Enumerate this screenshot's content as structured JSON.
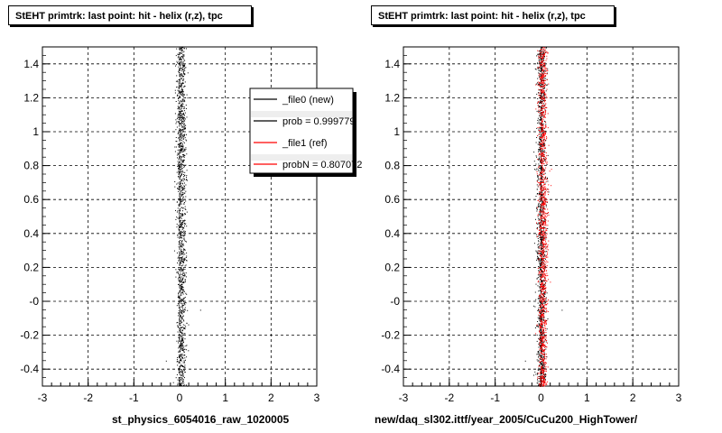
{
  "footer_note": "",
  "chart_data": [
    {
      "type": "scatter",
      "title": "StEHT primtrk: last point: hit - helix (r,z), tpc",
      "xlabel": "st_physics_6054016_raw_1020005",
      "ylabel": "",
      "xlim": [
        -3,
        3
      ],
      "ylim": [
        -0.5,
        1.5
      ],
      "grid": true,
      "x_ticks": [
        "-3",
        "-2",
        "-1",
        "0",
        "1",
        "2",
        "3"
      ],
      "y_ticks": [
        "-0.4",
        "-0.2",
        "-0",
        "0.2",
        "0.4",
        "0.6",
        "0.8",
        "1",
        "1.2",
        "1.4"
      ],
      "y_tick_values": [
        -0.4,
        -0.2,
        0,
        0.2,
        0.4,
        0.6,
        0.8,
        1.0,
        1.2,
        1.4
      ],
      "series": [
        {
          "name": "_file0 (new)",
          "color": "#000000",
          "x_center": 0.03,
          "x_spread": 0.05,
          "y_range": [
            -0.5,
            1.5
          ]
        }
      ],
      "outliers": [
        {
          "x": -0.12,
          "y": 0.3
        },
        {
          "x": 0.33,
          "y": 0.2
        },
        {
          "x": 0.45,
          "y": -0.05
        },
        {
          "x": -0.3,
          "y": -0.35
        }
      ],
      "legend": {
        "placement": "top-right",
        "entries": [
          {
            "label": "_file0 (new)",
            "color": "#000000"
          },
          {
            "label": "prob = 0.999779",
            "color": "#000000"
          },
          {
            "label": "_file1 (ref)",
            "color": "#ff0000"
          },
          {
            "label": "probN = 0.807072",
            "color": "#ff0000"
          }
        ]
      }
    },
    {
      "type": "scatter",
      "title": "StEHT primtrk: last point: hit - helix (r,z), tpc",
      "xlabel": "new/daq_sl302.ittf/year_2005/CuCu200_HighTower/",
      "ylabel": "",
      "xlim": [
        -3,
        3
      ],
      "ylim": [
        -0.5,
        1.5
      ],
      "grid": true,
      "x_ticks": [
        "-3",
        "-2",
        "-1",
        "0",
        "1",
        "2",
        "3"
      ],
      "y_ticks": [
        "-0.4",
        "-0.2",
        "-0",
        "0.2",
        "0.4",
        "0.6",
        "0.8",
        "1",
        "1.2",
        "1.4"
      ],
      "y_tick_values": [
        -0.4,
        -0.2,
        0,
        0.2,
        0.4,
        0.6,
        0.8,
        1.0,
        1.2,
        1.4
      ],
      "series": [
        {
          "name": "",
          "color": "#000000",
          "x_center": 0.0,
          "x_spread": 0.05,
          "y_range": [
            -0.5,
            1.5
          ]
        },
        {
          "name": "",
          "color": "#ff0000",
          "x_center": 0.03,
          "x_spread": 0.05,
          "y_range": [
            -0.5,
            1.5
          ]
        }
      ],
      "outliers": [
        {
          "x": -0.12,
          "y": 0.3
        },
        {
          "x": 0.33,
          "y": 0.2
        },
        {
          "x": 0.45,
          "y": -0.05
        },
        {
          "x": -0.35,
          "y": -0.35
        }
      ]
    }
  ]
}
